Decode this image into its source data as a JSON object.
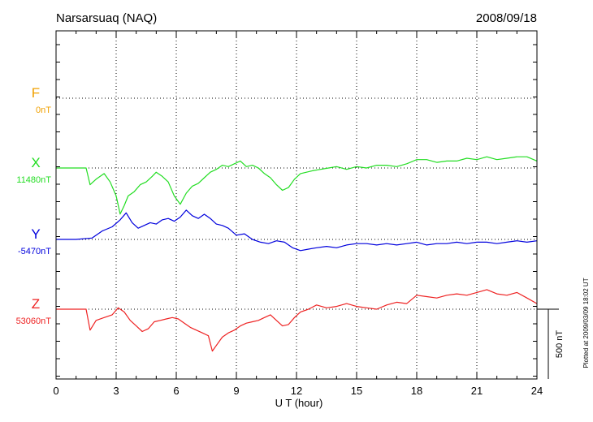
{
  "header": {
    "station": "Narsarsuaq (NAQ)",
    "date": "2008/09/18"
  },
  "plotted_note": "Plotted at 2009/03/09 18:02 UT",
  "scale_label": "500 nT",
  "chart_data": {
    "type": "line",
    "xlabel": "U T (hour)",
    "xlim": [
      0,
      24
    ],
    "x_ticks": [
      "0",
      "3",
      "6",
      "9",
      "12",
      "15",
      "18",
      "21",
      "24"
    ],
    "grid": true,
    "series": [
      {
        "name": "F",
        "baseline": "0nT",
        "color": "#f0a000",
        "x": [],
        "values": []
      },
      {
        "name": "X",
        "baseline": "11480nT",
        "color": "#22dd22",
        "x": [
          0,
          1.5,
          1.7,
          2.0,
          2.4,
          2.7,
          3.0,
          3.2,
          3.4,
          3.6,
          3.9,
          4.2,
          4.5,
          4.8,
          5.0,
          5.3,
          5.6,
          5.9,
          6.2,
          6.5,
          6.8,
          7.1,
          7.4,
          7.7,
          8.0,
          8.3,
          8.6,
          8.9,
          9.2,
          9.5,
          9.8,
          10.1,
          10.4,
          10.7,
          11.0,
          11.3,
          11.6,
          11.9,
          12.2,
          12.5,
          12.8,
          13.2,
          13.6,
          14.0,
          14.5,
          15.0,
          15.5,
          16.0,
          16.5,
          17.0,
          17.5,
          18.0,
          18.5,
          19.0,
          19.5,
          20.0,
          20.5,
          21.0,
          21.5,
          22.0,
          22.5,
          23.0,
          23.5,
          24.0
        ],
        "values": [
          0,
          0,
          -120,
          -80,
          -40,
          -100,
          -200,
          -330,
          -270,
          -200,
          -170,
          -120,
          -100,
          -60,
          -30,
          -60,
          -100,
          -200,
          -260,
          -180,
          -130,
          -110,
          -70,
          -30,
          -10,
          20,
          10,
          30,
          50,
          10,
          20,
          0,
          -40,
          -70,
          -120,
          -160,
          -140,
          -80,
          -40,
          -30,
          -20,
          -10,
          0,
          10,
          -10,
          10,
          0,
          20,
          20,
          10,
          30,
          60,
          60,
          40,
          50,
          50,
          70,
          60,
          80,
          60,
          70,
          80,
          80,
          50
        ]
      },
      {
        "name": "Y",
        "baseline": "-5470nT",
        "color": "#0000dd",
        "x": [
          0,
          1.0,
          1.8,
          2.3,
          2.8,
          3.2,
          3.5,
          3.8,
          4.1,
          4.4,
          4.7,
          5.0,
          5.3,
          5.6,
          5.9,
          6.2,
          6.5,
          6.8,
          7.1,
          7.4,
          7.7,
          8.0,
          8.3,
          8.6,
          9.0,
          9.4,
          9.8,
          10.2,
          10.6,
          11.0,
          11.4,
          11.8,
          12.2,
          12.6,
          13.0,
          13.5,
          14.0,
          14.5,
          15.0,
          15.5,
          16.0,
          16.5,
          17.0,
          17.5,
          18.0,
          18.5,
          19.0,
          19.5,
          20.0,
          20.5,
          21.0,
          21.5,
          22.0,
          22.5,
          23.0,
          23.5,
          24.0
        ],
        "values": [
          0,
          0,
          10,
          60,
          90,
          140,
          190,
          120,
          80,
          100,
          120,
          110,
          140,
          150,
          130,
          160,
          210,
          170,
          150,
          180,
          150,
          110,
          100,
          80,
          30,
          40,
          0,
          -20,
          -30,
          -10,
          -20,
          -60,
          -80,
          -70,
          -60,
          -50,
          -60,
          -40,
          -30,
          -30,
          -40,
          -30,
          -40,
          -30,
          -20,
          -40,
          -30,
          -30,
          -20,
          -30,
          -20,
          -20,
          -30,
          -20,
          -10,
          -20,
          -10
        ]
      },
      {
        "name": "Z",
        "baseline": "53060nT",
        "color": "#ee2222",
        "x": [
          0,
          1.5,
          1.7,
          2.0,
          2.4,
          2.8,
          3.1,
          3.4,
          3.7,
          4.0,
          4.3,
          4.6,
          4.9,
          5.2,
          5.5,
          5.8,
          6.1,
          6.4,
          6.7,
          7.0,
          7.3,
          7.6,
          7.8,
          8.0,
          8.3,
          8.6,
          8.9,
          9.2,
          9.5,
          9.8,
          10.1,
          10.4,
          10.7,
          11.0,
          11.3,
          11.6,
          11.9,
          12.2,
          12.6,
          13.0,
          13.5,
          14.0,
          14.5,
          15.0,
          15.5,
          16.0,
          16.5,
          17.0,
          17.5,
          18.0,
          18.5,
          19.0,
          19.5,
          20.0,
          20.5,
          21.0,
          21.5,
          22.0,
          22.5,
          23.0,
          23.5,
          24.0
        ],
        "values": [
          0,
          0,
          -150,
          -80,
          -60,
          -40,
          10,
          -20,
          -80,
          -120,
          -160,
          -140,
          -90,
          -80,
          -70,
          -60,
          -70,
          -100,
          -130,
          -150,
          -170,
          -190,
          -300,
          -260,
          -200,
          -170,
          -150,
          -120,
          -100,
          -90,
          -80,
          -60,
          -40,
          -80,
          -120,
          -110,
          -60,
          -20,
          0,
          30,
          10,
          20,
          40,
          20,
          10,
          0,
          30,
          50,
          40,
          100,
          90,
          80,
          100,
          110,
          100,
          120,
          140,
          110,
          100,
          120,
          80,
          40
        ]
      }
    ]
  }
}
